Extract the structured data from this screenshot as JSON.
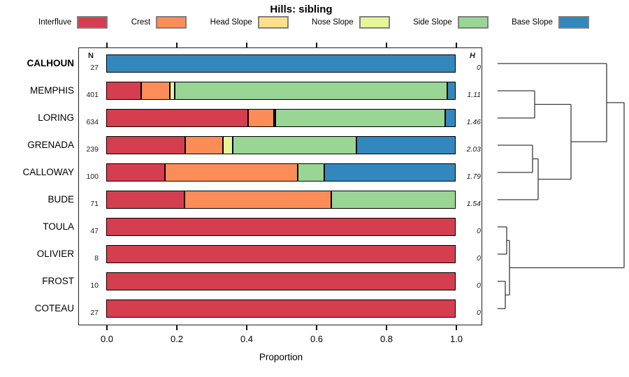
{
  "title": "Hills: sibling",
  "columns": {
    "n_header": "N",
    "h_header": "H"
  },
  "axis": {
    "label": "Proportion",
    "tick_labels": [
      "0.0",
      "0.2",
      "0.4",
      "0.6",
      "0.8",
      "1.0"
    ],
    "tick_values": [
      0.0,
      0.2,
      0.4,
      0.6,
      0.8,
      1.0
    ]
  },
  "colors": {
    "Interfluve": "#d53e4f",
    "Crest": "#fc8d59",
    "Head Slope": "#fee08b",
    "Nose Slope": "#e6f598",
    "Side Slope": "#99d594",
    "Base Slope": "#3288bd"
  },
  "chart_data": {
    "type": "bar",
    "orientation": "horizontal",
    "stacked": true,
    "title": "Hills: sibling",
    "xlabel": "Proportion",
    "xlim": [
      0,
      1
    ],
    "x_ticks": [
      0.0,
      0.2,
      0.4,
      0.6,
      0.8,
      1.0
    ],
    "categories": [
      "Interfluve",
      "Crest",
      "Head Slope",
      "Nose Slope",
      "Side Slope",
      "Base Slope"
    ],
    "legend_position": "top",
    "rows": [
      {
        "name": "CALHOUN",
        "bold": true,
        "n": "27",
        "h": "0",
        "segments": {
          "Base Slope": 1.0
        }
      },
      {
        "name": "MEMPHIS",
        "bold": false,
        "n": "401",
        "h": "1.11",
        "segments": {
          "Interfluve": 0.1,
          "Crest": 0.082,
          "Nose Slope": 0.013,
          "Side Slope": 0.78,
          "Base Slope": 0.025
        }
      },
      {
        "name": "LORING",
        "bold": false,
        "n": "634",
        "h": "1.46",
        "segments": {
          "Interfluve": 0.405,
          "Crest": 0.075,
          "Nose Slope": 0.004,
          "Side Slope": 0.486,
          "Base Slope": 0.03
        }
      },
      {
        "name": "GRENADA",
        "bold": false,
        "n": "239",
        "h": "2.03",
        "segments": {
          "Interfluve": 0.226,
          "Crest": 0.107,
          "Nose Slope": 0.029,
          "Side Slope": 0.353,
          "Base Slope": 0.285
        }
      },
      {
        "name": "CALLOWAY",
        "bold": false,
        "n": "100",
        "h": "1.79",
        "segments": {
          "Interfluve": 0.167,
          "Crest": 0.38,
          "Side Slope": 0.077,
          "Base Slope": 0.376
        }
      },
      {
        "name": "BUDE",
        "bold": false,
        "n": "71",
        "h": "1.54",
        "segments": {
          "Interfluve": 0.223,
          "Crest": 0.42,
          "Side Slope": 0.357
        }
      },
      {
        "name": "TOULA",
        "bold": false,
        "n": "47",
        "h": "0",
        "segments": {
          "Interfluve": 1.0
        }
      },
      {
        "name": "OLIVIER",
        "bold": false,
        "n": "8",
        "h": "0",
        "segments": {
          "Interfluve": 1.0
        }
      },
      {
        "name": "FROST",
        "bold": false,
        "n": "10",
        "h": "0",
        "segments": {
          "Interfluve": 1.0
        }
      },
      {
        "name": "COTEAU",
        "bold": false,
        "n": "27",
        "h": "0",
        "segments": {
          "Interfluve": 1.0
        }
      }
    ],
    "dendrogram": {
      "segments": [
        {
          "x1": 712,
          "y1": 91,
          "x2": 868,
          "y2": 91
        },
        {
          "x1": 712,
          "y1": 130,
          "x2": 765,
          "y2": 130
        },
        {
          "x1": 712,
          "y1": 169,
          "x2": 765,
          "y2": 169
        },
        {
          "x1": 765,
          "y1": 130,
          "x2": 765,
          "y2": 169
        },
        {
          "x1": 765,
          "y1": 149.5,
          "x2": 817,
          "y2": 149.5
        },
        {
          "x1": 712,
          "y1": 208,
          "x2": 762,
          "y2": 208
        },
        {
          "x1": 712,
          "y1": 247,
          "x2": 762,
          "y2": 247
        },
        {
          "x1": 762,
          "y1": 208,
          "x2": 762,
          "y2": 247
        },
        {
          "x1": 762,
          "y1": 227.5,
          "x2": 770,
          "y2": 227.5
        },
        {
          "x1": 712,
          "y1": 286,
          "x2": 770,
          "y2": 286
        },
        {
          "x1": 770,
          "y1": 227.5,
          "x2": 770,
          "y2": 286
        },
        {
          "x1": 770,
          "y1": 256.75,
          "x2": 817,
          "y2": 256.75
        },
        {
          "x1": 817,
          "y1": 149.5,
          "x2": 817,
          "y2": 256.75
        },
        {
          "x1": 817,
          "y1": 203,
          "x2": 868,
          "y2": 203
        },
        {
          "x1": 868,
          "y1": 91,
          "x2": 868,
          "y2": 203
        },
        {
          "x1": 868,
          "y1": 147,
          "x2": 893,
          "y2": 147
        },
        {
          "x1": 712,
          "y1": 325,
          "x2": 725,
          "y2": 325
        },
        {
          "x1": 712,
          "y1": 364,
          "x2": 725,
          "y2": 364
        },
        {
          "x1": 725,
          "y1": 325,
          "x2": 725,
          "y2": 364
        },
        {
          "x1": 725,
          "y1": 344.5,
          "x2": 729,
          "y2": 344.5
        },
        {
          "x1": 712,
          "y1": 403,
          "x2": 723,
          "y2": 403
        },
        {
          "x1": 712,
          "y1": 442,
          "x2": 723,
          "y2": 442
        },
        {
          "x1": 723,
          "y1": 403,
          "x2": 723,
          "y2": 442
        },
        {
          "x1": 723,
          "y1": 422.5,
          "x2": 729,
          "y2": 422.5
        },
        {
          "x1": 729,
          "y1": 344.5,
          "x2": 729,
          "y2": 422.5
        },
        {
          "x1": 729,
          "y1": 383.5,
          "x2": 893,
          "y2": 383.5
        },
        {
          "x1": 893,
          "y1": 147,
          "x2": 893,
          "y2": 383.5
        }
      ]
    }
  }
}
